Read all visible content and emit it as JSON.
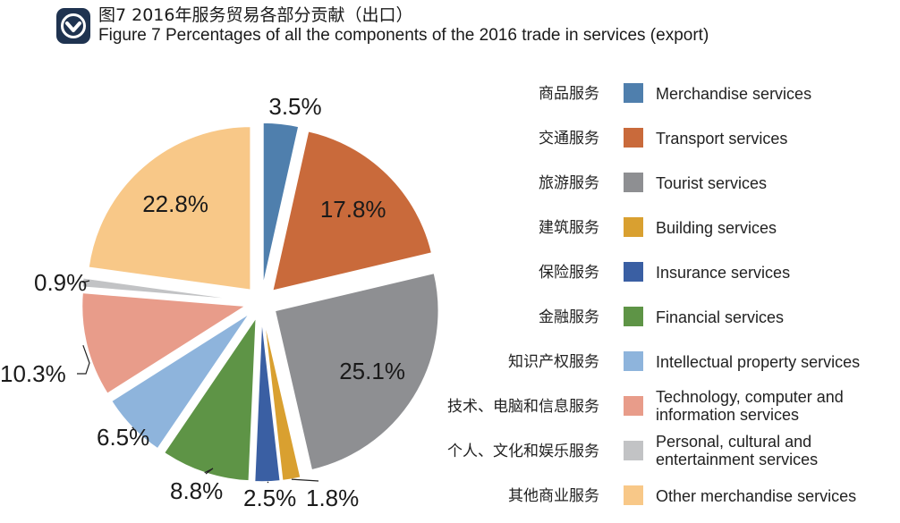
{
  "header": {
    "title_cn": "图7 2016年服务贸易各部分贡献（出口）",
    "title_en": "Figure 7 Percentages of all the components of  the 2016 trade in services (export)",
    "logo_icon": "chevron-down-badge-icon"
  },
  "chart_data": {
    "type": "pie",
    "exploded": true,
    "start_angle": "12 o'clock",
    "direction": "clockwise",
    "legend_position": "right",
    "slices": [
      {
        "label_cn": "商品服务",
        "label_en": [
          "Merchandise services"
        ],
        "value": 3.5,
        "label": "3.5%",
        "color": "#4f7fad"
      },
      {
        "label_cn": "交通服务",
        "label_en": [
          "Transport services"
        ],
        "value": 17.8,
        "label": "17.8%",
        "color": "#c96a3b"
      },
      {
        "label_cn": "旅游服务",
        "label_en": [
          "Tourist services"
        ],
        "value": 25.1,
        "label": "25.1%",
        "color": "#8e8f92"
      },
      {
        "label_cn": "建筑服务",
        "label_en": [
          "Building services"
        ],
        "value": 1.8,
        "label": "1.8%",
        "color": "#d9a030"
      },
      {
        "label_cn": "保险服务",
        "label_en": [
          "Insurance services"
        ],
        "value": 2.5,
        "label": "2.5%",
        "color": "#3a5fa3"
      },
      {
        "label_cn": "金融服务",
        "label_en": [
          "Financial services"
        ],
        "value": 8.8,
        "label": "8.8%",
        "color": "#5e9446"
      },
      {
        "label_cn": "知识产权服务",
        "label_en": [
          "Intellectual property services"
        ],
        "value": 6.5,
        "label": "6.5%",
        "color": "#8eb4dc"
      },
      {
        "label_cn": "技术、电脑和信息服务",
        "label_en": [
          "Technology, computer and",
          "information services"
        ],
        "value": 10.3,
        "label": "10.3%",
        "color": "#e89c8a"
      },
      {
        "label_cn": "个人、文化和娱乐服务",
        "label_en": [
          "Personal, cultural and",
          "entertainment services"
        ],
        "value": 0.9,
        "label": "0.9%",
        "color": "#c2c3c5"
      },
      {
        "label_cn": "其他商业服务",
        "label_en": [
          "Other merchandise services"
        ],
        "value": 22.8,
        "label": "22.8%",
        "color": "#f8c888"
      }
    ]
  }
}
